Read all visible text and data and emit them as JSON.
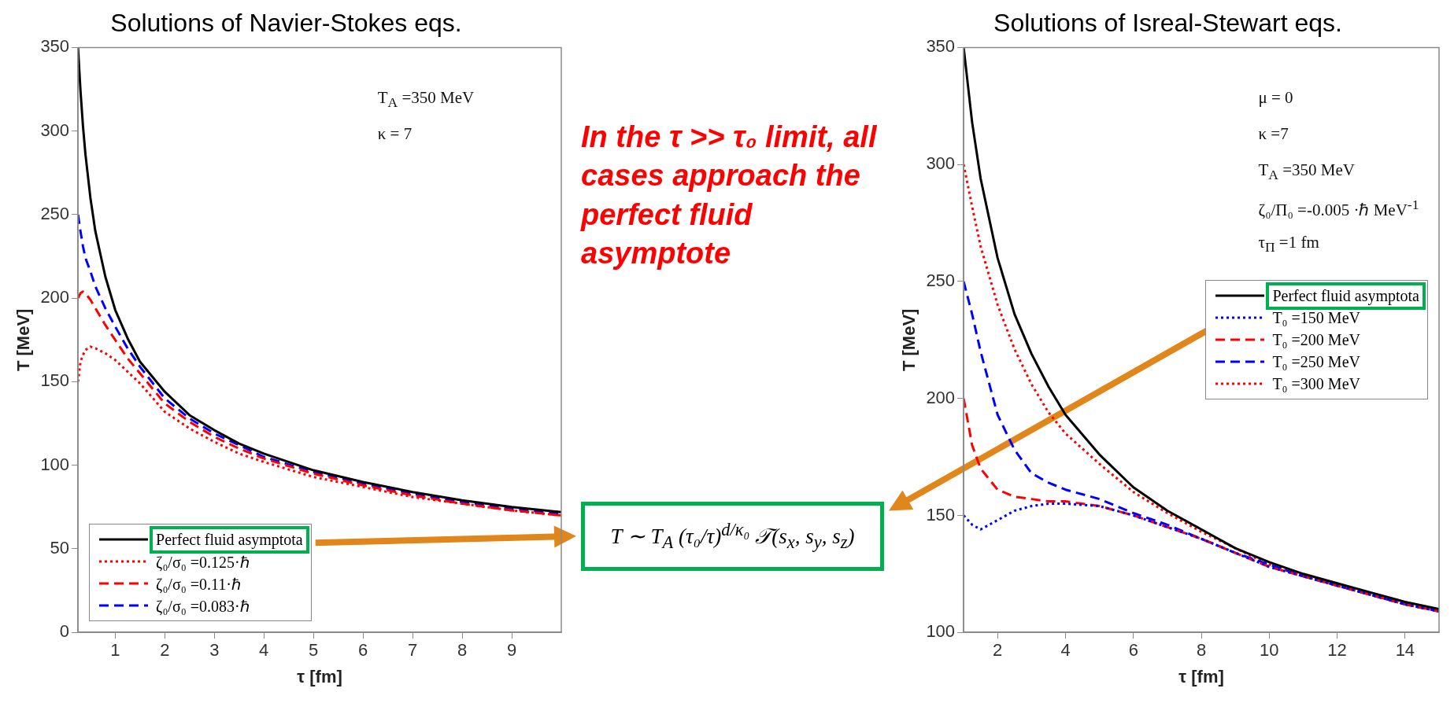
{
  "chart_data": [
    {
      "type": "line",
      "title": "Solutions of Navier-Stokes eqs.",
      "xlabel": "τ [fm]",
      "ylabel": "T [MeV]",
      "x": [
        0.25,
        0.3,
        0.35,
        0.4,
        0.5,
        0.6,
        0.8,
        1,
        1.25,
        1.5,
        2,
        2.5,
        3,
        3.5,
        4,
        5,
        6,
        7,
        8,
        9,
        10
      ],
      "series": [
        {
          "name": "Perfect fluid asymptota",
          "color": "#000000",
          "line_style": "solid",
          "values": [
            350,
            324,
            303,
            286,
            260,
            240,
            213,
            193,
            176,
            162,
            144,
            130,
            121,
            113,
            107,
            97,
            90,
            84,
            79,
            75,
            72
          ]
        },
        {
          "name": "ζ₀/σ₀ =0.125·ℏ",
          "color": "#ff0000",
          "line_style": "dotted",
          "values": [
            150,
            162,
            166,
            169,
            171,
            170,
            167,
            163,
            156,
            149,
            132,
            122,
            114,
            107,
            102,
            93,
            87,
            81,
            77,
            73,
            70
          ]
        },
        {
          "name": "ζ₀/σ₀ =0.11·ℏ",
          "color": "#ff0000",
          "line_style": "dashed",
          "values": [
            200,
            203,
            204,
            203,
            199,
            194,
            184,
            175,
            164,
            155,
            137,
            126,
            117,
            110,
            104,
            95,
            88,
            82,
            77,
            73,
            70
          ]
        },
        {
          "name": "ζ₀/σ₀ =0.083·ℏ",
          "color": "#0000ff",
          "line_style": "dashed",
          "values": [
            250,
            240,
            231,
            224,
            216,
            207,
            194,
            183,
            170,
            159,
            140,
            128,
            119,
            112,
            105,
            96,
            89,
            83,
            78,
            74,
            71
          ]
        }
      ],
      "xlim": [
        0.25,
        10
      ],
      "xticks": [
        1,
        2,
        3,
        4,
        5,
        6,
        7,
        8,
        9
      ],
      "ylim": [
        0,
        350
      ],
      "yticks": [
        0,
        50,
        100,
        150,
        200,
        250,
        300,
        350
      ],
      "legend": "bottom left",
      "annotations": [
        "T$_{A}$ =350 MeV",
        "κ = 7"
      ]
    },
    {
      "type": "line",
      "title": "Solutions of Isreal-Stewart eqs.",
      "xlabel": "τ [fm]",
      "ylabel": "T [MeV]",
      "x": [
        1,
        1.25,
        1.5,
        2,
        2.5,
        3,
        3.5,
        4,
        5,
        6,
        7,
        8,
        9,
        10,
        11,
        12,
        13,
        14,
        15
      ],
      "series": [
        {
          "name": "Perfect fluid asymptota",
          "color": "#000000",
          "line_style": "solid",
          "values": [
            350,
            318,
            294,
            260,
            236,
            219,
            205,
            193,
            176,
            162,
            152,
            144,
            136,
            130,
            125,
            121,
            117,
            113,
            110
          ]
        },
        {
          "name": "T₀ =150 MeV",
          "color": "#0000ff",
          "line_style": "dotted",
          "values": [
            150,
            146,
            144,
            148,
            152,
            154,
            155,
            155,
            154,
            150,
            145,
            140,
            134,
            128,
            124,
            120,
            116,
            112,
            109
          ]
        },
        {
          "name": "T₀ =200 MeV",
          "color": "#ff0000",
          "line_style": "dashed",
          "values": [
            200,
            180,
            170,
            161,
            158,
            157,
            156,
            156,
            154,
            150,
            145,
            140,
            134,
            128,
            124,
            120,
            116,
            112,
            109
          ]
        },
        {
          "name": "T₀ =250 MeV",
          "color": "#0000ff",
          "line_style": "dashed",
          "values": [
            250,
            236,
            220,
            193,
            178,
            168,
            164,
            161,
            157,
            151,
            146,
            140,
            134,
            129,
            124,
            120,
            116,
            112,
            109
          ]
        },
        {
          "name": "T₀ =300 MeV",
          "color": "#ff0000",
          "line_style": "dotted",
          "values": [
            300,
            282,
            265,
            240,
            221,
            206,
            194,
            185,
            172,
            160,
            151,
            143,
            136,
            129,
            124,
            120,
            116,
            112,
            109
          ]
        }
      ],
      "xlim": [
        1,
        15
      ],
      "xticks": [
        2,
        4,
        6,
        8,
        10,
        12,
        14
      ],
      "ylim": [
        100,
        350
      ],
      "yticks": [
        100,
        150,
        200,
        250,
        300,
        350
      ],
      "legend": "right",
      "annotations": [
        "μ = 0",
        "κ =7",
        "T$_{A}$ =350 MeV",
        "ζ₀/Π₀ =-0.005 ·ℏ MeV$^{-1}$",
        "τ$_{Π}$ =1 fm"
      ]
    },
    {
      "type": "other",
      "color": "#ff0000",
      "annotations": [
        "In the τ >> τ₀ limit, all cases approach the perfect fluid asymptote",
        "T ∼ T$_{A}$ (τ₀/τ)$^{d/κ₀}$ 𝒯(s$_{x}$, s$_{y}$, s$_{z}$)"
      ]
    }
  ]
}
